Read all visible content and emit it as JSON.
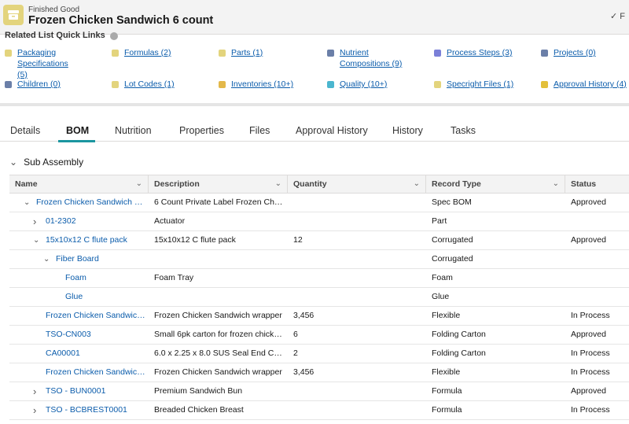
{
  "header": {
    "object_type": "Finished Good",
    "record_title": "Frozen Chicken Sandwich 6 count",
    "follow_glyph": "✓ F"
  },
  "quick_links": {
    "title": "Related List Quick Links",
    "items": [
      {
        "label": "Packaging Specifications (5)",
        "color": "#e3d47d",
        "line2": true
      },
      {
        "label": "Formulas (2)",
        "color": "#e3d47d"
      },
      {
        "label": "Parts (1)",
        "color": "#e3d47d"
      },
      {
        "label": "Nutrient Compositions (9)",
        "color": "#6b7fa8",
        "line2": true
      },
      {
        "label": "Process Steps (3)",
        "color": "#7b80d8"
      },
      {
        "label": "Projects (0)",
        "color": "#6b7fa8"
      },
      {
        "label": "Children (0)",
        "color": "#6b7fa8"
      },
      {
        "label": "Lot Codes (1)",
        "color": "#e3d47d"
      },
      {
        "label": "Inventories (10+)",
        "color": "#e3b84a"
      },
      {
        "label": "Quality (10+)",
        "color": "#4bb6cf"
      },
      {
        "label": "Specright Files (1)",
        "color": "#e3d47d"
      },
      {
        "label": "Approval History (4)",
        "color": "#e3c03a"
      }
    ]
  },
  "tabs": [
    "Details",
    "BOM",
    "Nutrition",
    "Properties",
    "Files",
    "Approval History",
    "History",
    "Tasks"
  ],
  "active_tab": "BOM",
  "section": {
    "title": "Sub Assembly"
  },
  "table": {
    "columns": [
      "Name",
      "Description",
      "Quantity",
      "Record Type",
      "Status"
    ],
    "rows": [
      {
        "name": "Frozen Chicken Sandwich 6 ...",
        "description": "6 Count Private Label Frozen Chick...",
        "quantity": "",
        "record_type": "Spec BOM",
        "status": "Approved",
        "level": 0,
        "toggle": "expanded"
      },
      {
        "name": "01-2302",
        "description": "Actuator",
        "quantity": "",
        "record_type": "Part",
        "status": "",
        "level": 1,
        "toggle": "collapsed"
      },
      {
        "name": "15x10x12 C flute pack",
        "description": "15x10x12 C flute pack",
        "quantity": "12",
        "record_type": "Corrugated",
        "status": "Approved",
        "level": 1,
        "toggle": "expanded"
      },
      {
        "name": "Fiber Board",
        "description": "",
        "quantity": "",
        "record_type": "Corrugated",
        "status": "",
        "level": 2,
        "toggle": "expanded"
      },
      {
        "name": "Foam",
        "description": "Foam Tray",
        "quantity": "",
        "record_type": "Foam",
        "status": "",
        "level": 3,
        "toggle": "none"
      },
      {
        "name": "Glue",
        "description": "",
        "quantity": "",
        "record_type": "Glue",
        "status": "",
        "level": 3,
        "toggle": "none"
      },
      {
        "name": "Frozen Chicken Sandwich ...",
        "description": "Frozen Chicken Sandwich wrapper",
        "quantity": "3,456",
        "record_type": "Flexible",
        "status": "In Process",
        "level": 1,
        "toggle": "none"
      },
      {
        "name": "TSO-CN003",
        "description": "Small 6pk carton for frozen chicken...",
        "quantity": "6",
        "record_type": "Folding Carton",
        "status": "Approved",
        "level": 1,
        "toggle": "none"
      },
      {
        "name": "CA00001",
        "description": "6.0 x 2.25 x 8.0 SUS Seal End Carton",
        "quantity": "2",
        "record_type": "Folding Carton",
        "status": "In Process",
        "level": 1,
        "toggle": "none"
      },
      {
        "name": "Frozen Chicken Sandwich ...",
        "description": "Frozen Chicken Sandwich wrapper",
        "quantity": "3,456",
        "record_type": "Flexible",
        "status": "In Process",
        "level": 1,
        "toggle": "none"
      },
      {
        "name": "TSO - BUN0001",
        "description": "Premium Sandwich Bun",
        "quantity": "",
        "record_type": "Formula",
        "status": "Approved",
        "level": 1,
        "toggle": "collapsed"
      },
      {
        "name": "TSO - BCBREST0001",
        "description": "Breaded Chicken Breast",
        "quantity": "",
        "record_type": "Formula",
        "status": "In Process",
        "level": 1,
        "toggle": "collapsed"
      }
    ]
  }
}
